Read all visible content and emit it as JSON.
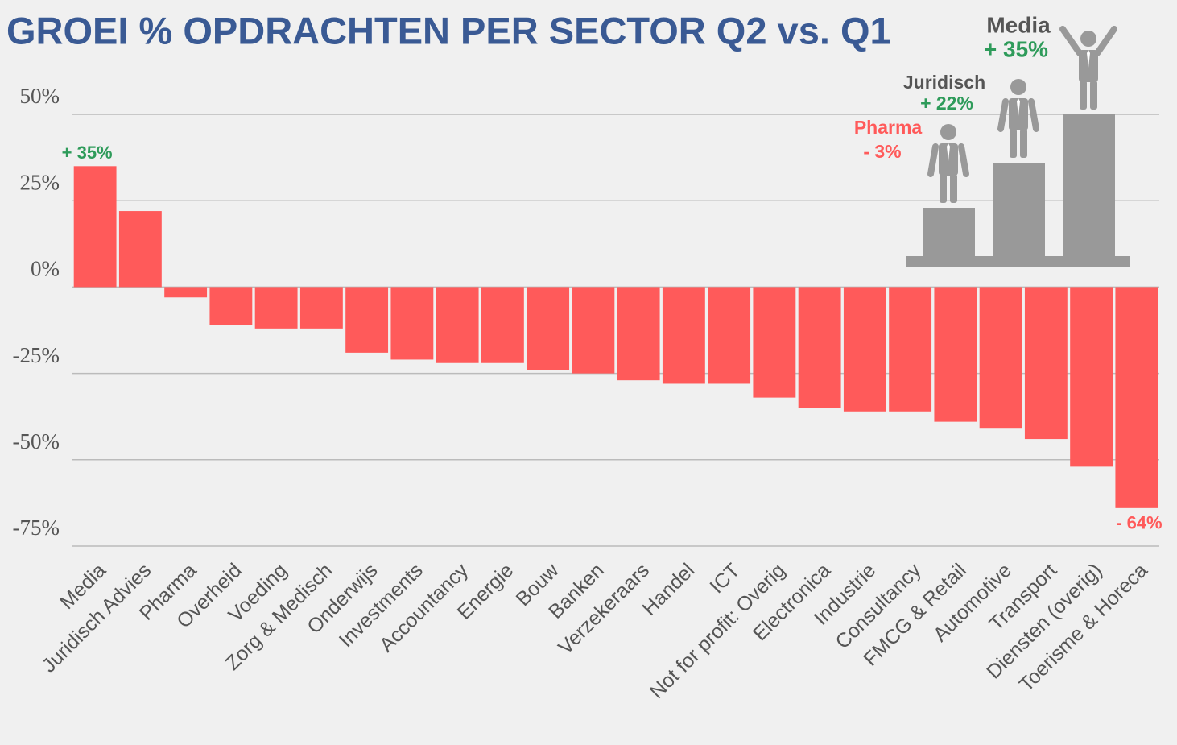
{
  "chart_data": {
    "type": "bar",
    "title": "GROEI % OPDRACHTEN PER SECTOR Q2 vs. Q1",
    "categories": [
      "Media",
      "Juridisch Advies",
      "Pharma",
      "Overheid",
      "Voeding",
      "Zorg & Medisch",
      "Onderwijs",
      "Investments",
      "Accountancy",
      "Energie",
      "Bouw",
      "Banken",
      "Verzekeraars",
      "Handel",
      "ICT",
      "Not for profit: Overig",
      "Electronica",
      "Industrie",
      "Consultancy",
      "FMCG & Retail",
      "Automotive",
      "Transport",
      "Diensten (overig)",
      "Toerisme & Horeca"
    ],
    "values": [
      35,
      22,
      -3,
      -11,
      -12,
      -12,
      -19,
      -21,
      -22,
      -22,
      -24,
      -25,
      -27,
      -28,
      -28,
      -32,
      -35,
      -36,
      -36,
      -39,
      -41,
      -44,
      -52,
      -64
    ],
    "value_labels": [
      "+ 35%",
      null,
      null,
      null,
      null,
      null,
      null,
      null,
      null,
      null,
      null,
      null,
      null,
      null,
      null,
      null,
      null,
      null,
      null,
      null,
      null,
      null,
      null,
      "- 64%"
    ],
    "color": "#ff5a5a",
    "ylim": [
      -75,
      50
    ],
    "yticks": [
      {
        "value": 50,
        "label": "50%"
      },
      {
        "value": 25,
        "label": "25%"
      },
      {
        "value": 0,
        "label": "0%"
      },
      {
        "value": -25,
        "label": "-25%"
      },
      {
        "value": -50,
        "label": "-50%"
      },
      {
        "value": -75,
        "label": "-75%"
      }
    ],
    "grid": true,
    "podium": [
      {
        "name": "Media",
        "label": "+ 35%"
      },
      {
        "name": "Juridisch",
        "label": "+ 22%"
      },
      {
        "name": "Pharma",
        "label": "- 3%"
      }
    ]
  }
}
